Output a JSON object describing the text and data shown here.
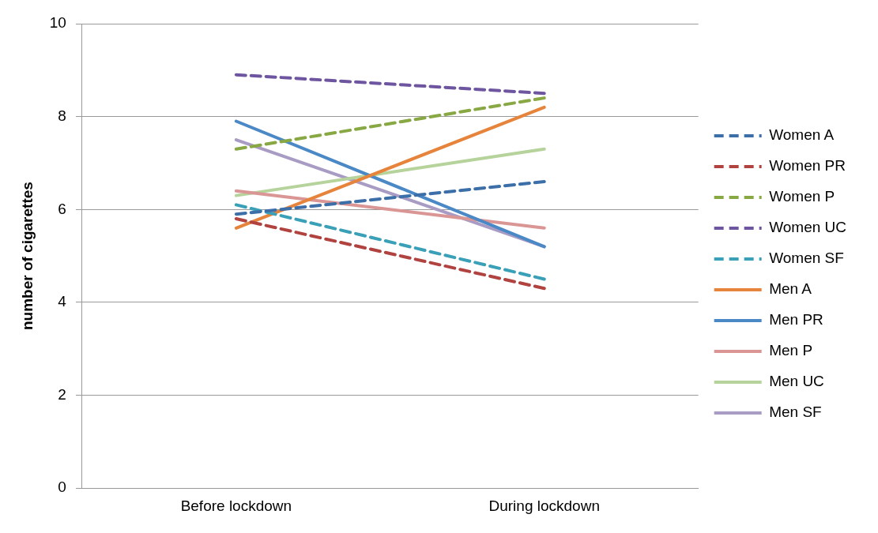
{
  "chart_data": {
    "type": "line",
    "ylabel": "number of cigarettes",
    "categories": [
      "Before lockdown",
      "During lockdown"
    ],
    "series": [
      {
        "name": "Women A",
        "color": "#3c6ea8",
        "line_style": "dashed",
        "values": [
          5.9,
          6.6
        ]
      },
      {
        "name": "Women PR",
        "color": "#b04340",
        "line_style": "dashed",
        "values": [
          5.8,
          4.3
        ]
      },
      {
        "name": "Women P",
        "color": "#88a843",
        "line_style": "dashed",
        "values": [
          7.3,
          8.4
        ]
      },
      {
        "name": "Women UC",
        "color": "#6e55a0",
        "line_style": "dashed",
        "values": [
          8.9,
          8.5
        ]
      },
      {
        "name": "Women SF",
        "color": "#3aa0b8",
        "line_style": "dashed",
        "values": [
          6.1,
          4.5
        ]
      },
      {
        "name": "Men A",
        "color": "#e6843c",
        "line_style": "solid",
        "values": [
          5.6,
          8.2
        ]
      },
      {
        "name": "Men PR",
        "color": "#4a88c6",
        "line_style": "solid",
        "values": [
          7.9,
          5.2
        ]
      },
      {
        "name": "Men P",
        "color": "#d99694",
        "line_style": "solid",
        "values": [
          6.4,
          5.6
        ]
      },
      {
        "name": "Men UC",
        "color": "#b5d39b",
        "line_style": "solid",
        "values": [
          6.3,
          7.3
        ]
      },
      {
        "name": "Men SF",
        "color": "#a89bc4",
        "line_style": "solid",
        "values": [
          7.5,
          5.2
        ]
      }
    ],
    "ylim": [
      0,
      10
    ],
    "yticks": [
      0,
      2,
      4,
      6,
      8,
      10
    ],
    "grid": "y",
    "legend": "right",
    "marker": "none"
  }
}
